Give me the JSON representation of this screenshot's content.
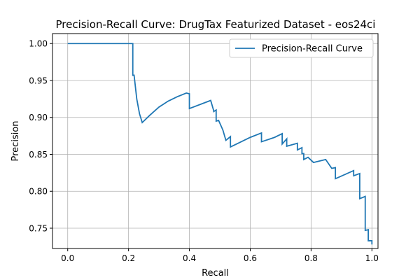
{
  "chart_data": {
    "type": "line",
    "title": "Precision-Recall Curve: DrugTax Featurized Dataset - eos24ci",
    "xlabel": "Recall",
    "ylabel": "Precision",
    "xlim": [
      -0.05,
      1.02
    ],
    "ylim": [
      0.7225,
      1.0135
    ],
    "x_ticks": [
      0.0,
      0.2,
      0.4,
      0.6,
      0.8,
      1.0
    ],
    "x_tick_labels": [
      "0.0",
      "0.2",
      "0.4",
      "0.6",
      "0.8",
      "1.0"
    ],
    "y_ticks": [
      0.75,
      0.8,
      0.85,
      0.9,
      0.95,
      1.0
    ],
    "y_tick_labels": [
      "0.75",
      "0.80",
      "0.85",
      "0.90",
      "0.95",
      "1.00"
    ],
    "grid": true,
    "legend_position": "top-right",
    "colors": {
      "line": "#1f77b4",
      "grid": "#b0b0b0",
      "axes": "#000000"
    },
    "series": [
      {
        "name": "Precision-Recall Curve",
        "x": [
          0.0,
          0.214,
          0.214,
          0.218,
          0.218,
          0.227,
          0.236,
          0.245,
          0.27,
          0.3,
          0.33,
          0.36,
          0.39,
          0.4,
          0.4,
          0.47,
          0.48,
          0.48,
          0.488,
          0.488,
          0.496,
          0.51,
          0.52,
          0.535,
          0.535,
          0.56,
          0.6,
          0.637,
          0.637,
          0.68,
          0.705,
          0.705,
          0.72,
          0.72,
          0.755,
          0.755,
          0.77,
          0.77,
          0.776,
          0.776,
          0.79,
          0.79,
          0.808,
          0.848,
          0.868,
          0.868,
          0.88,
          0.88,
          0.94,
          0.94,
          0.96,
          0.96,
          0.978,
          0.978,
          0.988,
          0.988,
          1.0,
          1.0
        ],
        "y": [
          1.0,
          1.0,
          0.957,
          0.957,
          0.958,
          0.925,
          0.905,
          0.893,
          0.903,
          0.914,
          0.922,
          0.928,
          0.933,
          0.932,
          0.912,
          0.923,
          0.909,
          0.908,
          0.91,
          0.895,
          0.896,
          0.883,
          0.869,
          0.874,
          0.86,
          0.865,
          0.873,
          0.879,
          0.867,
          0.873,
          0.878,
          0.864,
          0.871,
          0.861,
          0.865,
          0.856,
          0.859,
          0.851,
          0.851,
          0.843,
          0.846,
          0.846,
          0.839,
          0.843,
          0.831,
          0.831,
          0.832,
          0.817,
          0.828,
          0.821,
          0.824,
          0.79,
          0.793,
          0.747,
          0.748,
          0.733,
          0.733,
          0.728
        ]
      }
    ]
  }
}
